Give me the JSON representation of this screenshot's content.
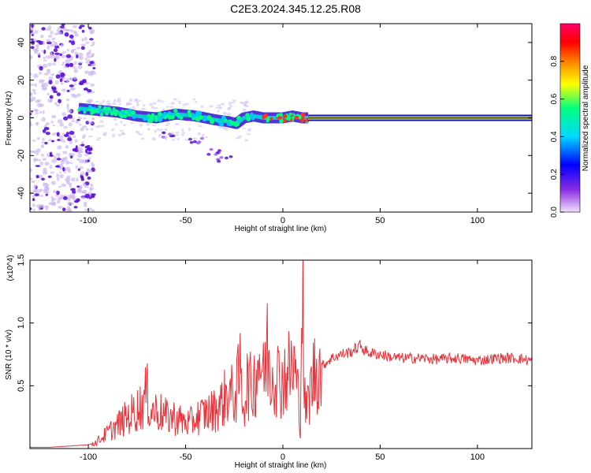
{
  "title": "C2E3.2024.345.12.25.R08",
  "colors": {
    "line": "#e8333a",
    "axis": "#000000",
    "ridge_core": "#ff1a1a",
    "ridge_glow": "#00ff66",
    "scatter_light": "#c9b3ef",
    "scatter_dark": "#5a10d8"
  },
  "chart_data": [
    {
      "type": "heatmap",
      "title": "C2E3.2024.345.12.25.R08",
      "xlabel": "Height of straight line (km)",
      "ylabel": "Frequency (Hz)",
      "xlim": [
        -130,
        128
      ],
      "ylim": [
        -50,
        50
      ],
      "x_ticks": [
        -100,
        -50,
        0,
        50,
        100
      ],
      "y_ticks": [
        -40,
        -20,
        0,
        20,
        40
      ],
      "colorbar": {
        "label": "Normalized spectral amplitude",
        "range": [
          0,
          1
        ],
        "ticks": [
          0.0,
          0.2,
          0.4,
          0.6,
          0.8
        ],
        "colormap": [
          "#f0e0ff",
          "#8a2be2",
          "#0000ff",
          "#00d8ff",
          "#00ff80",
          "#ffff00",
          "#ff8000",
          "#ff0000",
          "#ff0066"
        ]
      },
      "features": {
        "dense_scatter_x_range": [
          -130,
          -97
        ],
        "main_ridge": [
          [
            -105,
            5
          ],
          [
            -95,
            4
          ],
          [
            -85,
            3
          ],
          [
            -75,
            1
          ],
          [
            -65,
            0
          ],
          [
            -55,
            2
          ],
          [
            -45,
            1
          ],
          [
            -35,
            -1
          ],
          [
            -28,
            -2
          ],
          [
            -24,
            -3
          ],
          [
            -20,
            0
          ],
          [
            -15,
            1
          ],
          [
            -10,
            0
          ],
          [
            -5,
            0
          ],
          [
            0,
            0
          ],
          [
            5,
            1
          ],
          [
            10,
            0
          ],
          [
            13,
            0
          ]
        ],
        "lower_branch": [
          [
            -60,
            -9
          ],
          [
            -45,
            -12
          ],
          [
            -35,
            -18
          ],
          [
            -30,
            -22
          ]
        ],
        "steady_line": {
          "x_range": [
            13,
            128
          ],
          "frequency": 0
        }
      }
    },
    {
      "type": "line",
      "xlabel": "Height of straight line (km)",
      "ylabel": "SNR (10 * v/v)",
      "y_multiplier": "(x10^4)",
      "xlim": [
        -130,
        128
      ],
      "ylim": [
        0,
        1.5
      ],
      "x_ticks": [
        -100,
        -50,
        0,
        50,
        100
      ],
      "y_ticks": [
        0.5,
        1.0,
        1.5
      ],
      "series": [
        {
          "values_x": [
            -130,
            -120,
            -110,
            -100,
            -96,
            -92,
            -88,
            -84,
            -80,
            -76,
            -72,
            -70,
            -68,
            -64,
            -60,
            -56,
            -52,
            -48,
            -44,
            -40,
            -36,
            -32,
            -30,
            -28,
            -26,
            -24,
            -22,
            -20,
            -18,
            -16,
            -14,
            -12,
            -10,
            -8,
            -6,
            -4,
            -2,
            0,
            2,
            4,
            6,
            8,
            9,
            10,
            11,
            12,
            14,
            16,
            18,
            20,
            22,
            25,
            30,
            35,
            38,
            40,
            42,
            45,
            50,
            55,
            60,
            70,
            80,
            90,
            100,
            110,
            120,
            128
          ],
          "values_y": [
            0.01,
            0.01,
            0.02,
            0.03,
            0.05,
            0.1,
            0.15,
            0.2,
            0.25,
            0.3,
            0.35,
            0.45,
            0.3,
            0.3,
            0.25,
            0.25,
            0.22,
            0.2,
            0.25,
            0.28,
            0.3,
            0.35,
            0.4,
            0.45,
            0.42,
            0.45,
            0.6,
            0.35,
            0.55,
            0.45,
            0.6,
            0.75,
            0.55,
            0.8,
            0.6,
            0.65,
            0.55,
            0.55,
            0.6,
            0.62,
            0.65,
            0.4,
            0.2,
            1.5,
            0.4,
            0.3,
            0.45,
            0.6,
            0.65,
            0.66,
            0.68,
            0.72,
            0.75,
            0.77,
            0.8,
            0.82,
            0.78,
            0.76,
            0.75,
            0.73,
            0.72,
            0.72,
            0.71,
            0.72,
            0.7,
            0.72,
            0.72,
            0.7
          ]
        }
      ]
    }
  ]
}
